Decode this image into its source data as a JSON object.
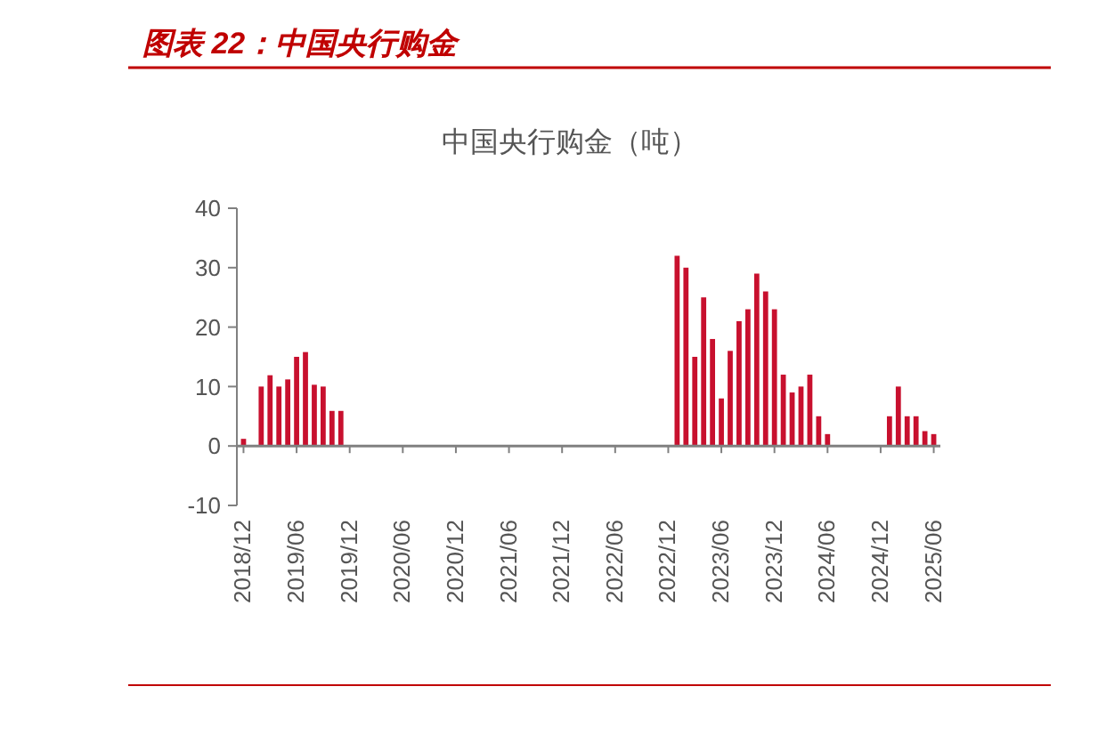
{
  "chart_data": {
    "type": "bar",
    "title": "图表 22：中国央行购金",
    "subtitle": "中国央行购金（吨）",
    "categories": [
      "2018/12",
      null,
      null,
      null,
      null,
      null,
      "2019/06",
      null,
      null,
      null,
      null,
      null,
      "2019/12",
      null,
      null,
      null,
      null,
      null,
      "2020/06",
      null,
      null,
      null,
      null,
      null,
      "2020/12",
      null,
      null,
      null,
      null,
      null,
      "2021/06",
      null,
      null,
      null,
      null,
      null,
      "2021/12",
      null,
      null,
      null,
      null,
      null,
      "2022/06",
      null,
      null,
      null,
      null,
      null,
      "2022/12",
      null,
      null,
      null,
      null,
      null,
      "2023/06",
      null,
      null,
      null,
      null,
      null,
      "2023/12",
      null,
      null,
      null,
      null,
      null,
      "2024/06",
      null,
      null,
      null,
      null,
      null,
      "2024/12",
      null,
      null,
      null,
      null,
      null,
      "2025/06"
    ],
    "values": [
      1.2,
      null,
      10,
      11.9,
      10,
      11.2,
      15,
      15.8,
      10.3,
      10,
      5.9,
      5.9,
      null,
      null,
      null,
      null,
      null,
      null,
      null,
      null,
      null,
      null,
      null,
      null,
      null,
      null,
      null,
      null,
      null,
      null,
      null,
      null,
      null,
      null,
      null,
      null,
      null,
      null,
      null,
      null,
      null,
      null,
      null,
      null,
      null,
      null,
      null,
      null,
      null,
      32,
      30,
      15,
      25,
      18,
      8,
      16,
      21,
      23,
      29,
      26,
      23,
      12,
      9,
      10,
      12,
      5,
      2,
      null,
      null,
      null,
      null,
      null,
      null,
      5,
      10,
      5,
      5,
      2.5,
      2
    ],
    "color": "#c8102e",
    "ylim": [
      -10,
      40
    ],
    "yticks": [
      -10,
      0,
      10,
      20,
      30,
      40
    ]
  }
}
